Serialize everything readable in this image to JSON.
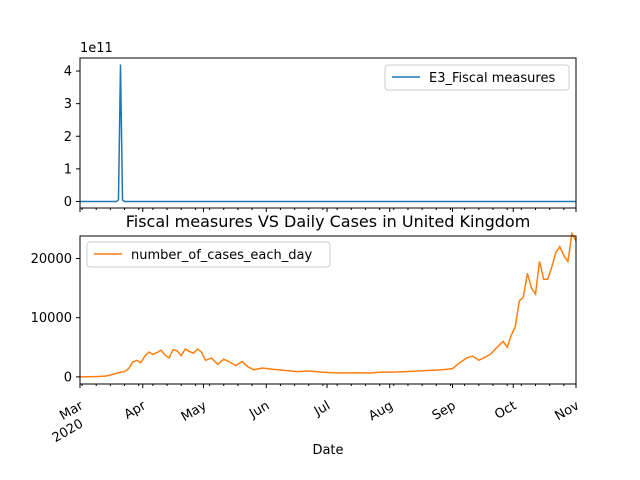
{
  "figure": {
    "title": "Fiscal measures VS Daily Cases in United Kingdom",
    "xlabel": "Date"
  },
  "chart_data": [
    {
      "type": "line",
      "name": "top",
      "series": [
        {
          "name": "E3_Fiscal measures",
          "color": "#1f77b4",
          "points": [
            [
              "2020-03-01",
              0
            ],
            [
              "2020-03-19",
              0
            ],
            [
              "2020-03-20",
              0.05
            ],
            [
              "2020-03-21",
              4.2
            ],
            [
              "2020-03-22",
              0.05
            ],
            [
              "2020-03-23",
              0
            ],
            [
              "2020-03-24",
              0
            ],
            [
              "2020-11-01",
              0
            ]
          ]
        }
      ],
      "y_ticks": [
        0,
        1,
        2,
        3,
        4
      ],
      "y_tick_labels": [
        "0",
        "1",
        "2",
        "3",
        "4"
      ],
      "ylim": [
        -0.2,
        4.4
      ],
      "offset_label": "1e11",
      "legend_position": "upper right",
      "x_domain": [
        "2020-03-01",
        "2020-11-01"
      ]
    },
    {
      "type": "line",
      "name": "bottom",
      "series": [
        {
          "name": "number_of_cases_each_day",
          "color": "#ff7f0e",
          "points": [
            [
              "2020-03-01",
              0
            ],
            [
              "2020-03-05",
              20
            ],
            [
              "2020-03-10",
              60
            ],
            [
              "2020-03-14",
              150
            ],
            [
              "2020-03-17",
              400
            ],
            [
              "2020-03-20",
              700
            ],
            [
              "2020-03-23",
              900
            ],
            [
              "2020-03-25",
              1400
            ],
            [
              "2020-03-27",
              2500
            ],
            [
              "2020-03-29",
              2800
            ],
            [
              "2020-03-31",
              2400
            ],
            [
              "2020-04-02",
              3500
            ],
            [
              "2020-04-04",
              4200
            ],
            [
              "2020-04-06",
              3800
            ],
            [
              "2020-04-08",
              4100
            ],
            [
              "2020-04-10",
              4500
            ],
            [
              "2020-04-12",
              3700
            ],
            [
              "2020-04-14",
              3200
            ],
            [
              "2020-04-16",
              4600
            ],
            [
              "2020-04-18",
              4400
            ],
            [
              "2020-04-20",
              3600
            ],
            [
              "2020-04-22",
              4700
            ],
            [
              "2020-04-24",
              4300
            ],
            [
              "2020-04-26",
              4000
            ],
            [
              "2020-04-28",
              4700
            ],
            [
              "2020-04-30",
              4200
            ],
            [
              "2020-05-02",
              2800
            ],
            [
              "2020-05-05",
              3200
            ],
            [
              "2020-05-08",
              2100
            ],
            [
              "2020-05-11",
              3000
            ],
            [
              "2020-05-14",
              2500
            ],
            [
              "2020-05-17",
              1900
            ],
            [
              "2020-05-20",
              2600
            ],
            [
              "2020-05-23",
              1700
            ],
            [
              "2020-05-26",
              1200
            ],
            [
              "2020-05-30",
              1500
            ],
            [
              "2020-06-04",
              1300
            ],
            [
              "2020-06-10",
              1100
            ],
            [
              "2020-06-16",
              900
            ],
            [
              "2020-06-22",
              1000
            ],
            [
              "2020-06-28",
              800
            ],
            [
              "2020-07-04",
              700
            ],
            [
              "2020-07-10",
              650
            ],
            [
              "2020-07-16",
              700
            ],
            [
              "2020-07-22",
              650
            ],
            [
              "2020-07-28",
              800
            ],
            [
              "2020-08-03",
              800
            ],
            [
              "2020-08-09",
              900
            ],
            [
              "2020-08-15",
              1000
            ],
            [
              "2020-08-21",
              1100
            ],
            [
              "2020-08-27",
              1200
            ],
            [
              "2020-09-01",
              1400
            ],
            [
              "2020-09-05",
              2500
            ],
            [
              "2020-09-08",
              3200
            ],
            [
              "2020-09-11",
              3500
            ],
            [
              "2020-09-14",
              2800
            ],
            [
              "2020-09-17",
              3300
            ],
            [
              "2020-09-20",
              3900
            ],
            [
              "2020-09-23",
              5000
            ],
            [
              "2020-09-26",
              6000
            ],
            [
              "2020-09-28",
              5000
            ],
            [
              "2020-09-30",
              7000
            ],
            [
              "2020-10-02",
              8500
            ],
            [
              "2020-10-04",
              12800
            ],
            [
              "2020-10-06",
              13500
            ],
            [
              "2020-10-08",
              17500
            ],
            [
              "2020-10-10",
              15000
            ],
            [
              "2020-10-12",
              14000
            ],
            [
              "2020-10-14",
              19500
            ],
            [
              "2020-10-16",
              16500
            ],
            [
              "2020-10-18",
              16500
            ],
            [
              "2020-10-20",
              18500
            ],
            [
              "2020-10-22",
              21000
            ],
            [
              "2020-10-24",
              22000
            ],
            [
              "2020-10-26",
              20500
            ],
            [
              "2020-10-28",
              19500
            ],
            [
              "2020-10-30",
              24200
            ],
            [
              "2020-11-01",
              23000
            ]
          ]
        }
      ],
      "y_ticks": [
        0,
        10000,
        20000
      ],
      "y_tick_labels": [
        "0",
        "10000",
        "20000"
      ],
      "ylim": [
        -1200,
        23800
      ],
      "legend_position": "upper left",
      "x_domain": [
        "2020-03-01",
        "2020-11-01"
      ],
      "x_major_ticks": [
        {
          "date": "2020-03-01",
          "label": "Mar"
        },
        {
          "date": "2020-04-01",
          "label": "Apr"
        },
        {
          "date": "2020-05-01",
          "label": "May"
        },
        {
          "date": "2020-06-01",
          "label": "Jun"
        },
        {
          "date": "2020-07-01",
          "label": "Jul"
        },
        {
          "date": "2020-08-01",
          "label": "Aug"
        },
        {
          "date": "2020-09-01",
          "label": "Sep"
        },
        {
          "date": "2020-10-01",
          "label": "Oct"
        },
        {
          "date": "2020-11-01",
          "label": "Nov"
        }
      ],
      "x_year_label": "2020"
    }
  ]
}
